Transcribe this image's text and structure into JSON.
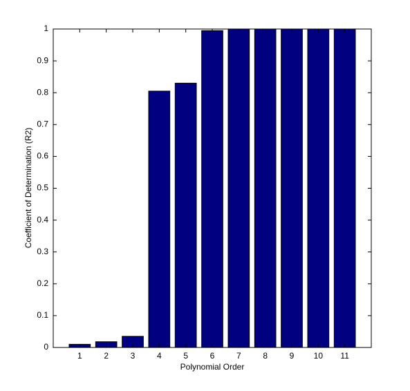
{
  "chart_data": {
    "type": "bar",
    "x": [
      1,
      2,
      3,
      4,
      5,
      6,
      7,
      8,
      9,
      10,
      11
    ],
    "values": [
      0.01,
      0.018,
      0.035,
      0.805,
      0.83,
      0.995,
      1,
      1,
      1,
      1,
      1
    ],
    "color": "#000080",
    "xlabel": "Polynomial Order",
    "ylabel": "Coefficient of Determination (R2)",
    "xlim": [
      0,
      12
    ],
    "xticks": [
      1,
      2,
      3,
      4,
      5,
      6,
      7,
      8,
      9,
      10,
      11
    ],
    "ylim": [
      0,
      1
    ],
    "yticks": [
      0,
      0.1,
      0.2,
      0.3,
      0.4,
      0.5,
      0.6,
      0.7,
      0.8,
      0.9,
      1
    ],
    "grid": false
  }
}
